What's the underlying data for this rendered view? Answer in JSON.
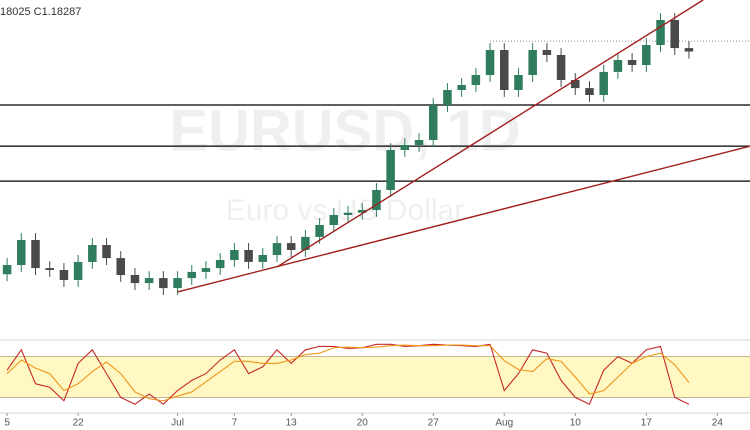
{
  "chart_data": {
    "type": "candlestick",
    "header": "18025  C1.18287",
    "watermark": "EURUSD, 1D",
    "watermark_sub": "Euro vs US Dollar",
    "x": [
      0,
      1,
      2,
      3,
      4,
      5,
      6,
      7,
      8,
      9,
      10,
      11,
      12,
      13,
      14,
      15,
      16,
      17,
      18,
      19,
      20,
      21,
      22,
      23,
      24,
      25,
      26,
      27,
      28,
      29,
      30,
      31,
      32,
      33,
      34,
      35,
      36,
      37,
      38,
      39,
      40,
      41,
      42,
      43,
      44,
      45,
      46,
      47,
      48
    ],
    "xlim": [
      -0.5,
      52.3
    ],
    "xticks": [
      {
        "value": 0,
        "label": "5"
      },
      {
        "value": 5,
        "label": "22"
      },
      {
        "value": 12,
        "label": "Jul"
      },
      {
        "value": 16,
        "label": "7"
      },
      {
        "value": 20,
        "label": "13"
      },
      {
        "value": 25,
        "label": "20"
      },
      {
        "value": 30,
        "label": "27"
      },
      {
        "value": 35,
        "label": "Aug"
      },
      {
        "value": 40,
        "label": "10"
      },
      {
        "value": 45,
        "label": "17"
      },
      {
        "value": 50,
        "label": "24"
      }
    ],
    "ylim": [
      1.1079,
      1.1963
    ],
    "candles": {
      "open": [
        1.125,
        1.1274,
        1.1339,
        1.1266,
        1.1261,
        1.1235,
        1.1282,
        1.1326,
        1.1292,
        1.1248,
        1.1227,
        1.124,
        1.1214,
        1.124,
        1.1256,
        1.1266,
        1.1287,
        1.1313,
        1.1282,
        1.13,
        1.1331,
        1.1313,
        1.1347,
        1.1378,
        1.1404,
        1.141,
        1.1417,
        1.1469,
        1.1573,
        1.1586,
        1.1599,
        1.169,
        1.1729,
        1.1742,
        1.1768,
        1.1833,
        1.1729,
        1.1768,
        1.1833,
        1.182,
        1.1755,
        1.1734,
        1.1716,
        1.1776,
        1.1807,
        1.1794,
        1.1846,
        1.1911,
        1.1838
      ],
      "high": [
        1.1292,
        1.1357,
        1.1357,
        1.1284,
        1.1279,
        1.13,
        1.1344,
        1.1344,
        1.131,
        1.1266,
        1.1258,
        1.1258,
        1.1258,
        1.1274,
        1.1284,
        1.1305,
        1.1331,
        1.1331,
        1.1318,
        1.1349,
        1.1349,
        1.1365,
        1.1396,
        1.1422,
        1.1428,
        1.1435,
        1.1487,
        1.1591,
        1.1604,
        1.1617,
        1.1708,
        1.1747,
        1.176,
        1.1786,
        1.1851,
        1.1851,
        1.1786,
        1.1851,
        1.1851,
        1.1838,
        1.1773,
        1.1752,
        1.1794,
        1.1825,
        1.1825,
        1.1864,
        1.1929,
        1.1929,
        1.1856
      ],
      "low": [
        1.1232,
        1.1256,
        1.1248,
        1.1243,
        1.1217,
        1.1217,
        1.1264,
        1.1274,
        1.123,
        1.1209,
        1.1209,
        1.1196,
        1.1196,
        1.1222,
        1.1238,
        1.1248,
        1.1269,
        1.1264,
        1.1264,
        1.1282,
        1.1295,
        1.1295,
        1.1329,
        1.136,
        1.1386,
        1.1392,
        1.1399,
        1.1451,
        1.1555,
        1.1568,
        1.1581,
        1.1672,
        1.1711,
        1.1724,
        1.175,
        1.1711,
        1.1711,
        1.175,
        1.1802,
        1.1737,
        1.1716,
        1.1698,
        1.1698,
        1.1758,
        1.1776,
        1.1776,
        1.1828,
        1.182,
        1.1811
      ],
      "close": [
        1.1274,
        1.1339,
        1.1266,
        1.1261,
        1.1235,
        1.1282,
        1.1326,
        1.1292,
        1.1248,
        1.1227,
        1.124,
        1.1214,
        1.124,
        1.1256,
        1.1266,
        1.1287,
        1.1313,
        1.1282,
        1.13,
        1.1331,
        1.1313,
        1.1347,
        1.1378,
        1.1404,
        1.141,
        1.1417,
        1.1469,
        1.1573,
        1.1586,
        1.1599,
        1.169,
        1.1729,
        1.1742,
        1.1768,
        1.1833,
        1.1729,
        1.1768,
        1.1833,
        1.182,
        1.1755,
        1.1734,
        1.1716,
        1.1776,
        1.1807,
        1.1794,
        1.1846,
        1.1911,
        1.1838,
        1.1829
      ]
    },
    "up_color": "#2f7d5c",
    "down_color": "#4a4a4a",
    "levels": [
      1.169,
      1.1583,
      1.1492
    ],
    "level_color": "#000000",
    "trend_color": "#a11d1d",
    "trend_lines": [
      {
        "x": [
          12,
          52.3
        ],
        "values": [
          1.1204,
          1.1583
        ]
      },
      {
        "x": [
          19,
          49
        ],
        "values": [
          1.1269,
          1.1963
        ]
      }
    ],
    "dotted_level": {
      "x": [
        34,
        52.3
      ],
      "values": [
        1.1856,
        1.1856
      ]
    },
    "oscillator": {
      "type": "stochastic",
      "ylim": [
        0,
        100
      ],
      "bands": [
        20,
        80
      ],
      "band_color": "#fff8c2",
      "series": [
        {
          "color": "#c62828",
          "values": [
            60,
            90,
            40,
            35,
            15,
            70,
            90,
            55,
            20,
            10,
            25,
            10,
            30,
            45,
            55,
            75,
            90,
            55,
            65,
            90,
            70,
            90,
            95,
            95,
            92,
            93,
            98,
            98,
            95,
            96,
            98,
            97,
            96,
            95,
            98,
            30,
            55,
            90,
            85,
            45,
            20,
            10,
            60,
            80,
            70,
            90,
            95,
            20,
            10
          ]
        },
        {
          "color": "#f0951a",
          "values": [
            55,
            75,
            63,
            55,
            30,
            40,
            58,
            72,
            55,
            28,
            18,
            15,
            22,
            28,
            43,
            58,
            73,
            73,
            70,
            70,
            75,
            83,
            85,
            93,
            94,
            93,
            94,
            96,
            97,
            96,
            96,
            97,
            97,
            96,
            96,
            74,
            61,
            58,
            77,
            73,
            50,
            25,
            30,
            50,
            70,
            80,
            85,
            68,
            42
          ]
        }
      ]
    }
  }
}
